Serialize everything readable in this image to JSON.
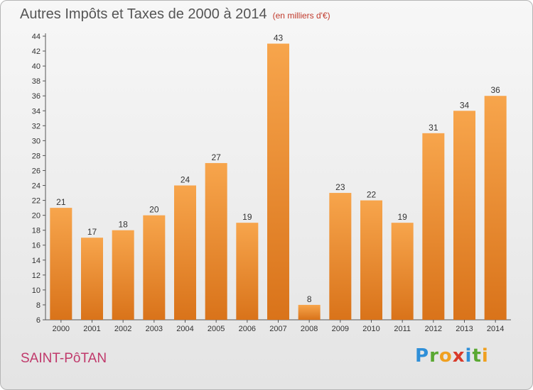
{
  "chart_data": {
    "type": "bar",
    "title": "Autres Impôts et Taxes de 2000 à 2014",
    "subtitle": "(en milliers d'€)",
    "categories": [
      "2000",
      "2001",
      "2002",
      "2003",
      "2004",
      "2005",
      "2006",
      "2007",
      "2008",
      "2009",
      "2010",
      "2011",
      "2012",
      "2013",
      "2014"
    ],
    "values": [
      21,
      17,
      18,
      20,
      24,
      27,
      19,
      43,
      8,
      23,
      22,
      19,
      31,
      34,
      36
    ],
    "ylim": [
      6,
      44
    ],
    "yticks": [
      6,
      8,
      10,
      12,
      14,
      16,
      18,
      20,
      22,
      24,
      26,
      28,
      30,
      32,
      34,
      36,
      38,
      40,
      42,
      44
    ],
    "grid": false,
    "bar_color": "#f0932b"
  },
  "commune": "SAINT-PôTAN",
  "logo": {
    "letters": [
      "P",
      "r",
      "o",
      "x",
      "i",
      "t",
      "i"
    ],
    "colors": [
      "#2f8fd8",
      "#5aa832",
      "#f0a020",
      "#d83a2a",
      "#2f8fd8",
      "#5aa832",
      "#f0a020"
    ]
  }
}
